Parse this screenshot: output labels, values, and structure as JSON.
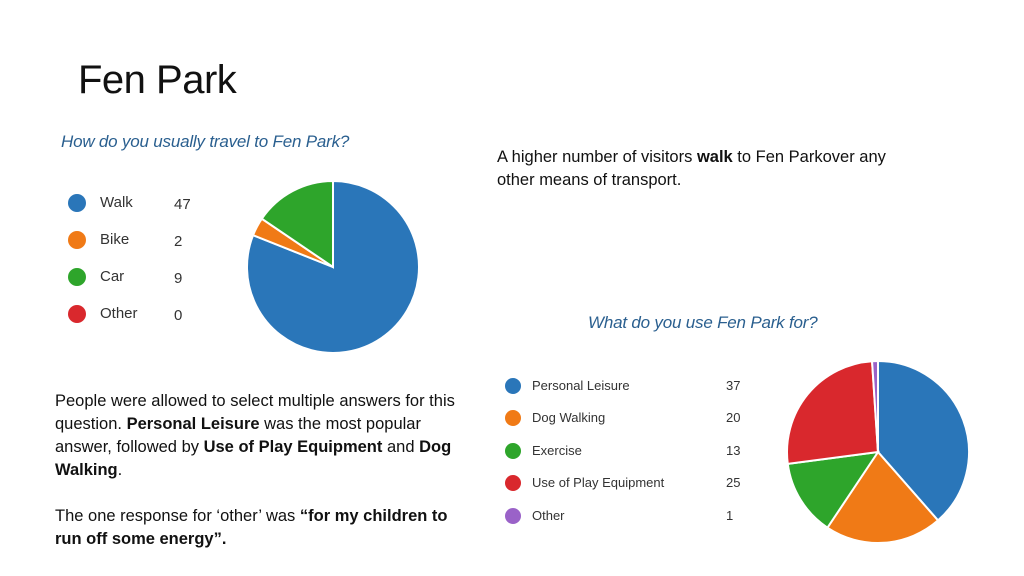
{
  "slide": {
    "title": "Fen Park"
  },
  "notes": {
    "transport": {
      "p1": "A higher number of visitors ",
      "b1": "walk",
      "p2": " to Fen Parkover any other means of transport."
    },
    "usage": {
      "p1": "People were allowed to select multiple answers for this question.  ",
      "b1": "Personal Leisure",
      "p2": " was the most popular answer, followed by ",
      "b2": "Use of Play Equipment",
      "p3": " and ",
      "b3": "Dog Walking",
      "p4": "."
    },
    "other": {
      "p1": "The one response for ‘other’ was ",
      "b1": "“for my children to run off some energy”."
    }
  },
  "chart_data": [
    {
      "type": "pie",
      "title": "How do you usually travel to Fen Park?",
      "categories": [
        "Walk",
        "Bike",
        "Car",
        "Other"
      ],
      "values": [
        47,
        2,
        9,
        0
      ],
      "colors": [
        "#2a76b9",
        "#f07a16",
        "#2ea52b",
        "#d9282d"
      ],
      "legend_position": "left"
    },
    {
      "type": "pie",
      "title": "What do you use Fen Park for?",
      "categories": [
        "Personal Leisure",
        "Dog Walking",
        "Exercise",
        "Use of Play Equipment",
        "Other"
      ],
      "values": [
        37,
        20,
        13,
        25,
        1
      ],
      "colors": [
        "#2a76b9",
        "#f07a16",
        "#2ea52b",
        "#d9282d",
        "#9a62c8"
      ],
      "legend_position": "left"
    }
  ]
}
